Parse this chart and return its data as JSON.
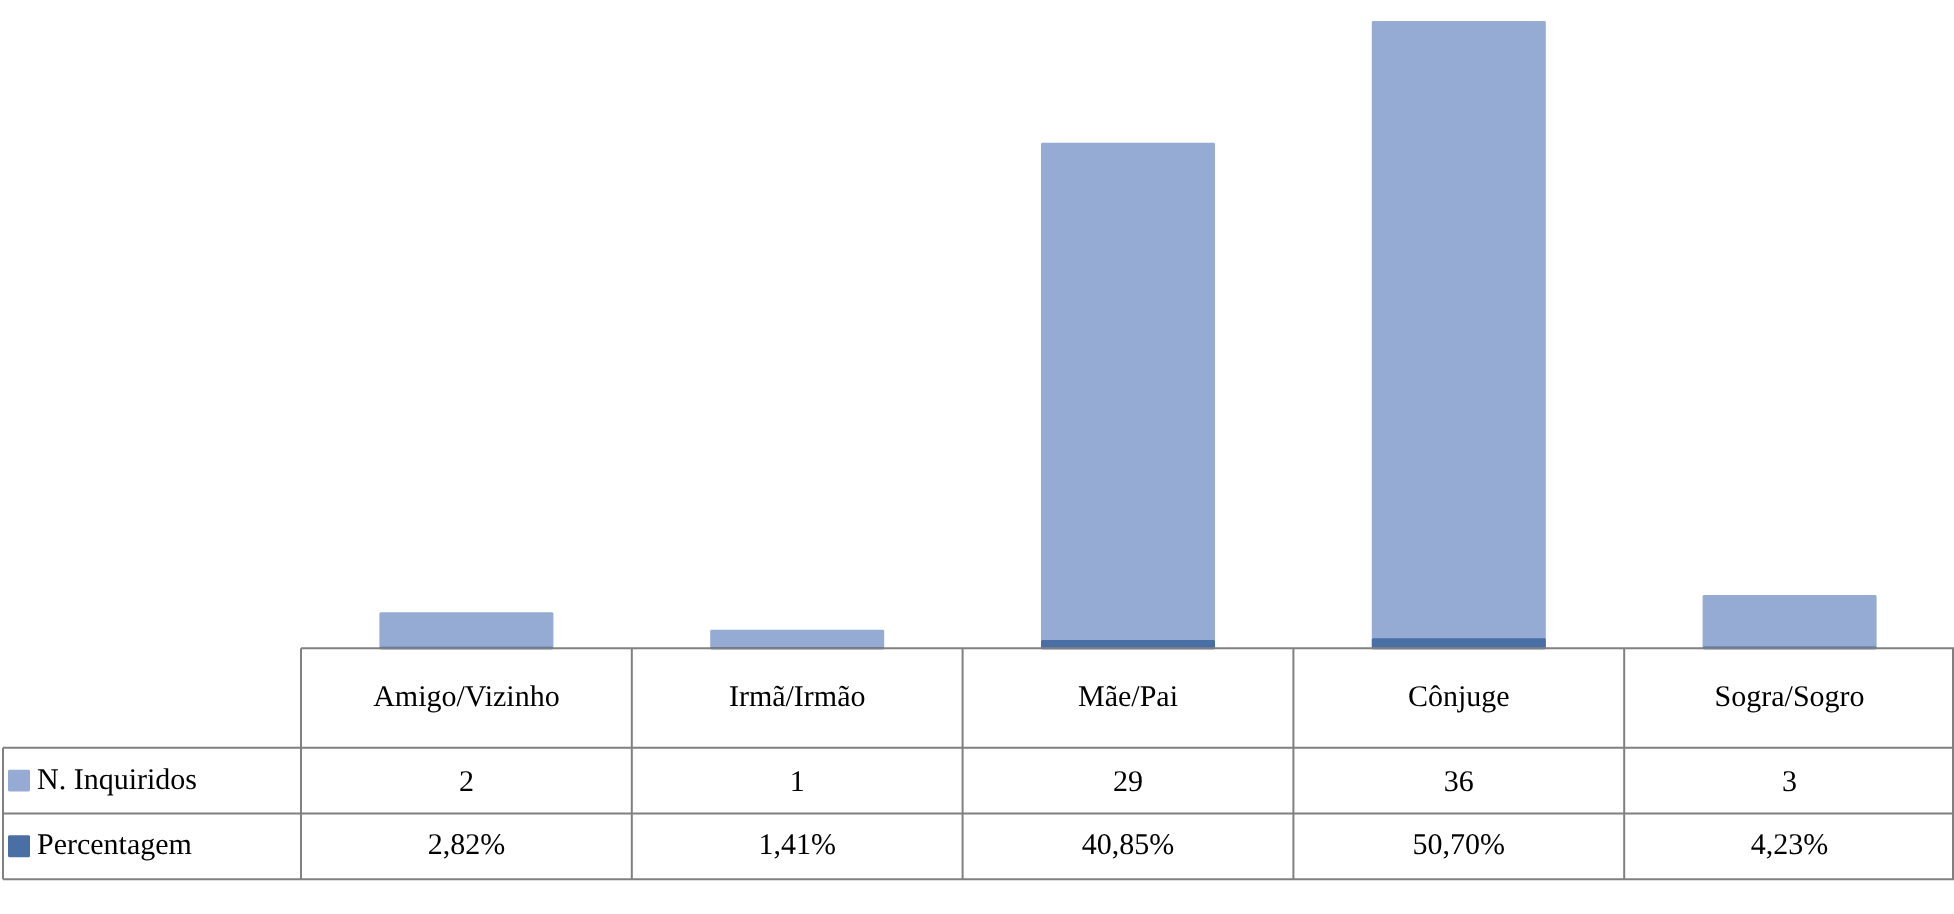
{
  "chart_data": {
    "type": "bar",
    "categories": [
      "Amigo/Vizinho",
      "Irmã/Irmão",
      "Mãe/Pai",
      "Cônjuge",
      "Sogra/Sogro"
    ],
    "series": [
      {
        "name": "N. Inquiridos",
        "color": "#95abd4",
        "values": [
          2,
          1,
          29,
          36,
          3
        ]
      },
      {
        "name": "Percentagem",
        "color": "#4a6fa5",
        "values": [
          0.0282,
          0.0141,
          0.4085,
          0.507,
          0.0423
        ],
        "value_labels": [
          "2,82%",
          "1,41%",
          "40,85%",
          "50,70%",
          "4,23%"
        ]
      }
    ],
    "data_labels": true,
    "grid": false,
    "legend": "bottom"
  }
}
